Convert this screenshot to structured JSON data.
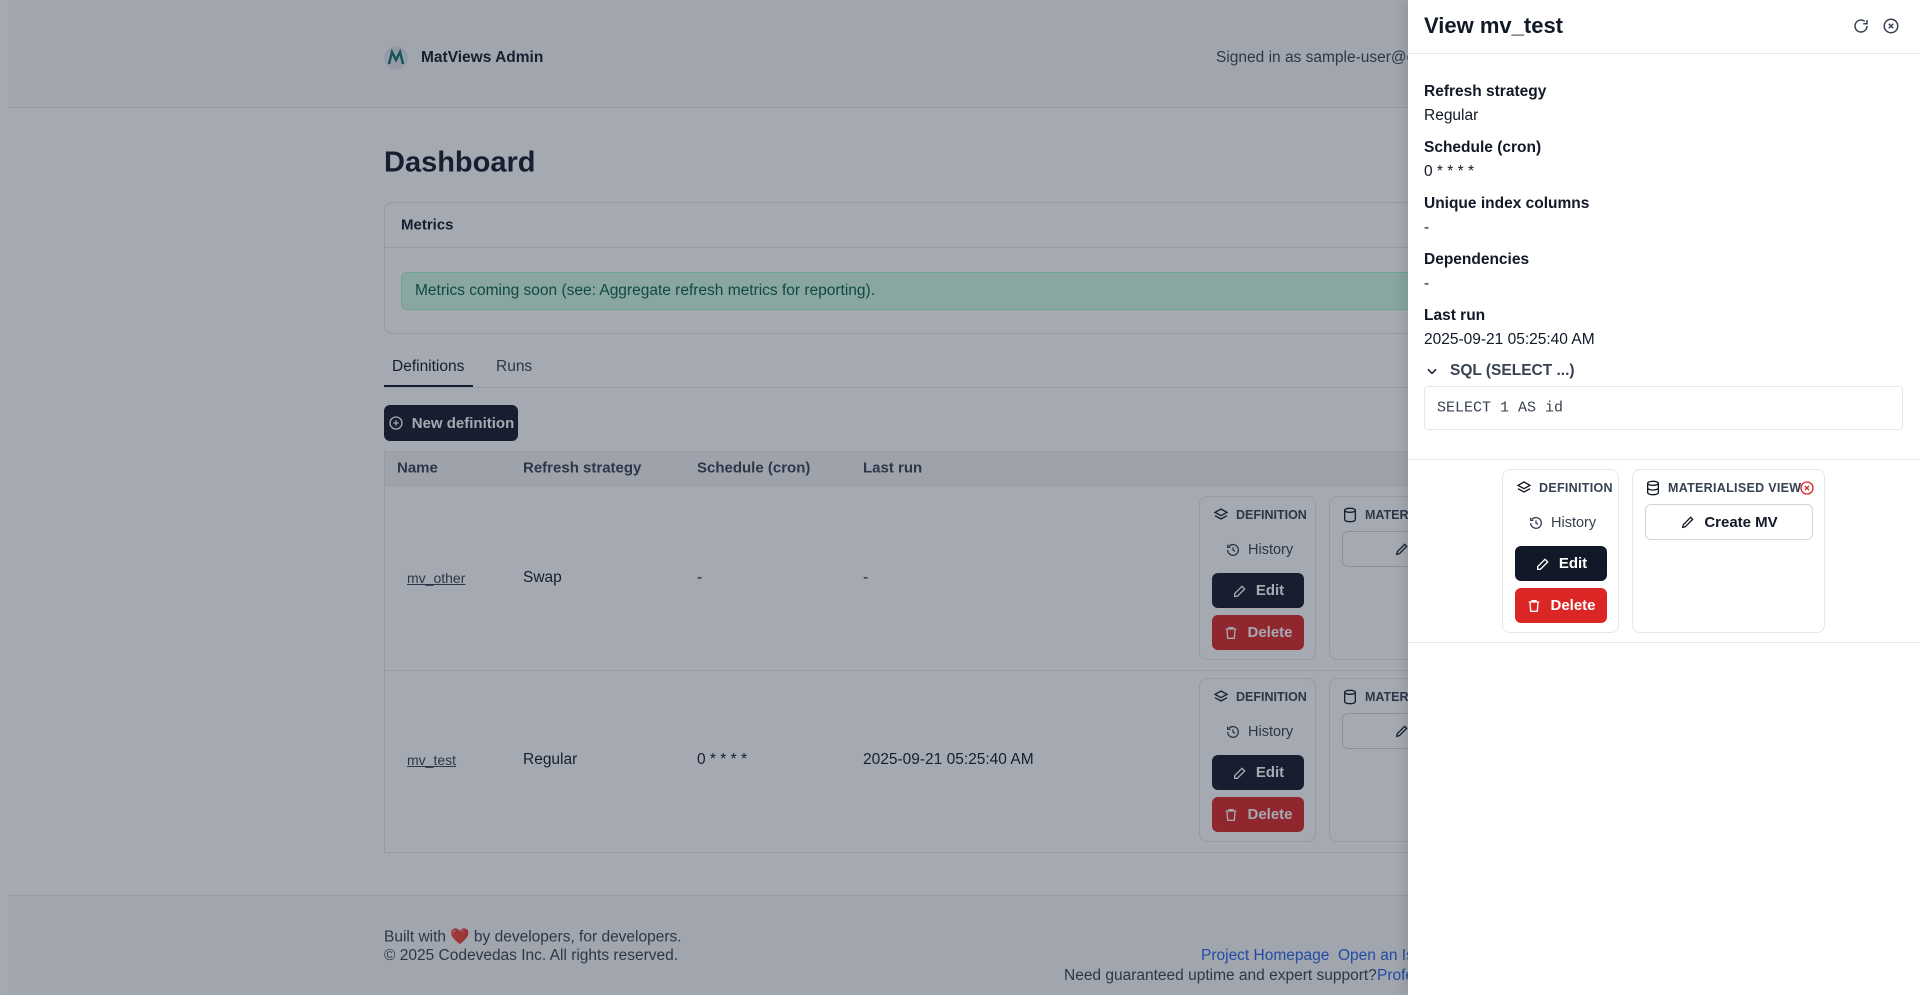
{
  "header": {
    "brand": "MatViews Admin",
    "signed_in": "Signed in as sample-user@e"
  },
  "page": {
    "title": "Dashboard"
  },
  "metrics": {
    "title": "Metrics",
    "message": "Metrics coming soon (see: Aggregate refresh metrics for reporting)."
  },
  "tabs": [
    "Definitions",
    "Runs"
  ],
  "new_definition": "New definition",
  "table": {
    "columns": [
      "Name",
      "Refresh strategy",
      "Schedule (cron)",
      "Last run"
    ],
    "rows": [
      [
        "mv_other",
        "Swap",
        "-",
        "-"
      ],
      [
        "mv_test",
        "Regular",
        "0 * * * *",
        "2025-09-21 05:25:40 AM"
      ]
    ]
  },
  "actions": {
    "definition": "DEFINITION",
    "history": "History",
    "edit": "Edit",
    "delete": "Delete",
    "materialised_clipped": "MATER"
  },
  "footer": {
    "built": "Built with ❤️ by developers, for developers.",
    "copyright": "© 2025 Codevedas Inc. All rights reserved.",
    "links": [
      "Project Homepage",
      "Open an Iss"
    ],
    "support": "Need guaranteed uptime and expert support?",
    "support_link": "Profe"
  },
  "drawer": {
    "title": "View mv_test",
    "fields": [
      {
        "label": "Refresh strategy",
        "value": "Regular"
      },
      {
        "label": "Schedule (cron)",
        "value": "0 * * * *"
      },
      {
        "label": "Unique index columns",
        "value": "-"
      },
      {
        "label": "Dependencies",
        "value": "-"
      },
      {
        "label": "Last run",
        "value": "2025-09-21 05:25:40 AM"
      }
    ],
    "sql_summary": "SQL (SELECT ...)",
    "sql": "SELECT 1 AS id",
    "definition_card": {
      "title": "DEFINITION",
      "history": "History",
      "edit": "Edit",
      "delete": "Delete"
    },
    "mv_card": {
      "title": "MATERIALISED VIEW",
      "create": "Create MV"
    }
  }
}
